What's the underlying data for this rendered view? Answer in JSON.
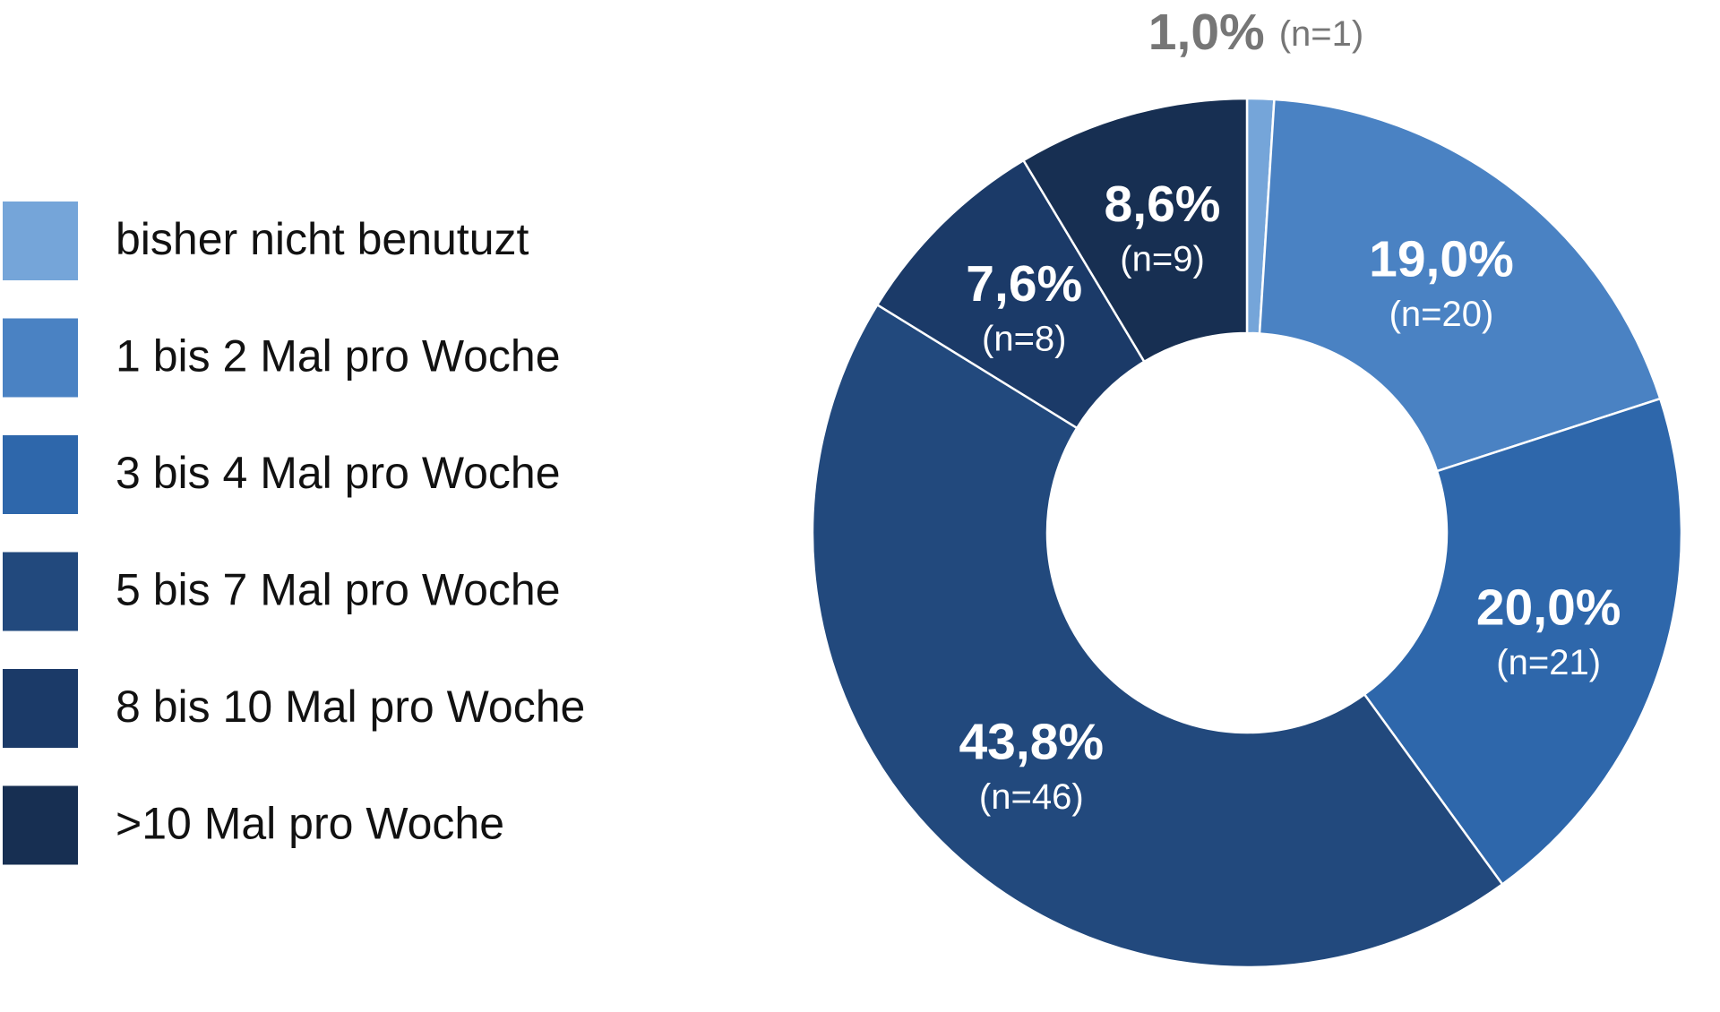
{
  "chart_data": {
    "type": "donut",
    "categories": [
      "bisher nicht benutuzt",
      "1 bis 2 Mal pro Woche",
      "3 bis 4 Mal pro Woche",
      "5 bis 7 Mal pro Woche",
      "8 bis 10 Mal pro Woche",
      ">10 Mal pro Woche"
    ],
    "values": [
      1.0,
      19.0,
      20.0,
      43.8,
      7.6,
      8.6
    ],
    "value_labels": [
      "1,0%",
      "19,0%",
      "20,0%",
      "43,8%",
      "7,6%",
      "8,6%"
    ],
    "count_labels": [
      "(n=1)",
      "(n=20)",
      "(n=21)",
      "(n=46)",
      "(n=8)",
      "(n=9)"
    ],
    "colors": [
      "#75a5d9",
      "#4a82c3",
      "#2e67ab",
      "#22497d",
      "#1b3a68",
      "#172f52"
    ],
    "legend": "left"
  }
}
